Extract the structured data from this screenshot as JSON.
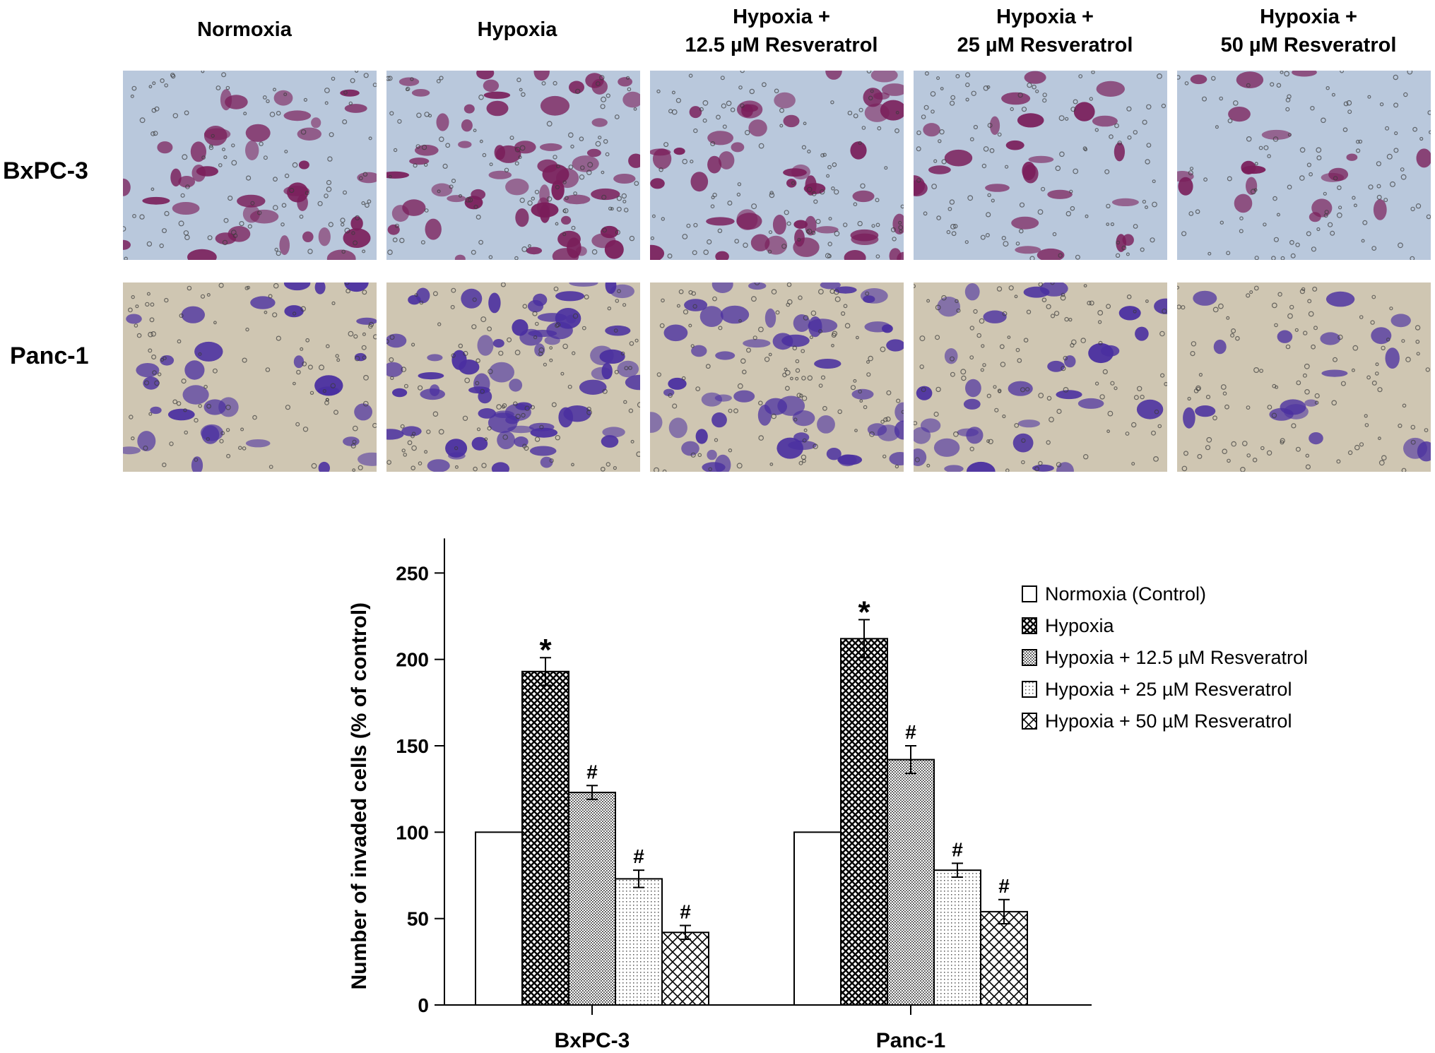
{
  "panel_headers": [
    [
      "Normoxia"
    ],
    [
      "Hypoxia"
    ],
    [
      "Hypoxia +",
      "12.5 µM Resveratrol"
    ],
    [
      "Hypoxia +",
      "25 µM Resveratrol"
    ],
    [
      "Hypoxia +",
      "50 µM Resveratrol"
    ]
  ],
  "row_labels": [
    "BxPC-3",
    "Panc-1"
  ],
  "micrographs": {
    "bxpc3_style": {
      "background": "#b9c8dc",
      "cell_color": "#7a1e5a"
    },
    "panc1_style": {
      "background": "#cfc6b2",
      "cell_color": "#4a2fa0"
    },
    "cell_density": [
      [
        0.55,
        0.85,
        0.7,
        0.35,
        0.25
      ],
      [
        0.45,
        0.95,
        0.75,
        0.45,
        0.25
      ]
    ]
  },
  "chart_data": {
    "type": "bar",
    "categories": [
      "BxPC-3",
      "Panc-1"
    ],
    "ylabel": "Number of invaded cells (% of control)",
    "xlabel": "",
    "ylim": [
      0,
      270
    ],
    "yticks": [
      0,
      50,
      100,
      150,
      200,
      250
    ],
    "legend_position": "right",
    "series": [
      {
        "name": "Normoxia (Control)",
        "values": [
          100,
          100
        ],
        "errors": [
          0,
          0
        ],
        "marks": [
          "",
          ""
        ],
        "pattern": "empty"
      },
      {
        "name": "Hypoxia",
        "values": [
          193,
          212
        ],
        "errors": [
          8,
          11
        ],
        "marks": [
          "*",
          "*"
        ],
        "pattern": "dense-crosshatch"
      },
      {
        "name": "Hypoxia + 12.5 µM Resveratrol",
        "values": [
          123,
          142
        ],
        "errors": [
          4,
          8
        ],
        "marks": [
          "#",
          "#"
        ],
        "pattern": "dense-dots"
      },
      {
        "name": "Hypoxia + 25 µM Resveratrol",
        "values": [
          73,
          78
        ],
        "errors": [
          5,
          4
        ],
        "marks": [
          "#",
          "#"
        ],
        "pattern": "sparse-dots"
      },
      {
        "name": "Hypoxia + 50 µM Resveratrol",
        "values": [
          42,
          54
        ],
        "errors": [
          4,
          7
        ],
        "marks": [
          "#",
          "#"
        ],
        "pattern": "crosshatch"
      }
    ]
  }
}
